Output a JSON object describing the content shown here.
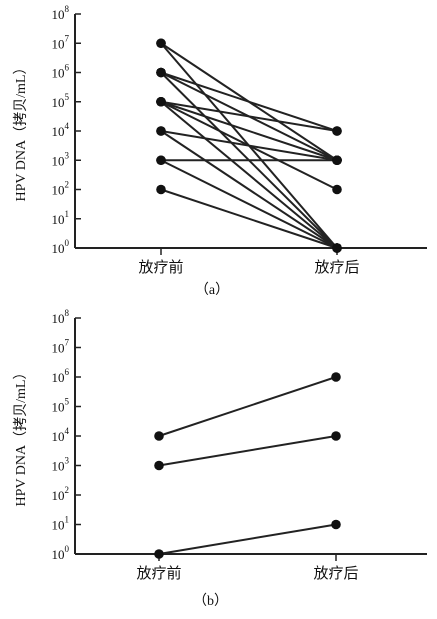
{
  "chart_data": [
    {
      "type": "line",
      "panel_label": "（a）",
      "ylabel": "HPV DNA（拷贝/mL）",
      "categories": [
        "放疗前",
        "放疗后"
      ],
      "y_scale": "log10",
      "ylim": [
        1,
        100000000
      ],
      "y_ticks": [
        {
          "base": "10",
          "exp": "0"
        },
        {
          "base": "10",
          "exp": "1"
        },
        {
          "base": "10",
          "exp": "2"
        },
        {
          "base": "10",
          "exp": "3"
        },
        {
          "base": "10",
          "exp": "4"
        },
        {
          "base": "10",
          "exp": "5"
        },
        {
          "base": "10",
          "exp": "6"
        },
        {
          "base": "10",
          "exp": "7"
        },
        {
          "base": "10",
          "exp": "8"
        }
      ],
      "grid": false,
      "series": [
        {
          "values": [
            10000000,
            1
          ]
        },
        {
          "values": [
            10000000,
            1000
          ]
        },
        {
          "values": [
            1000000,
            10000
          ]
        },
        {
          "values": [
            1000000,
            1000
          ]
        },
        {
          "values": [
            1000000,
            1
          ]
        },
        {
          "values": [
            100000,
            10000
          ]
        },
        {
          "values": [
            100000,
            1000
          ]
        },
        {
          "values": [
            100000,
            100
          ]
        },
        {
          "values": [
            100000,
            1
          ]
        },
        {
          "values": [
            10000,
            1000
          ]
        },
        {
          "values": [
            10000,
            1
          ]
        },
        {
          "values": [
            1000,
            1000
          ]
        },
        {
          "values": [
            1000,
            1
          ]
        },
        {
          "values": [
            100,
            1
          ]
        }
      ]
    },
    {
      "type": "line",
      "panel_label": "（b）",
      "ylabel": "HPV DNA（拷贝/mL）",
      "categories": [
        "放疗前",
        "放疗后"
      ],
      "y_scale": "log10",
      "ylim": [
        1,
        100000000
      ],
      "y_ticks": [
        {
          "base": "10",
          "exp": "0"
        },
        {
          "base": "10",
          "exp": "1"
        },
        {
          "base": "10",
          "exp": "2"
        },
        {
          "base": "10",
          "exp": "3"
        },
        {
          "base": "10",
          "exp": "4"
        },
        {
          "base": "10",
          "exp": "5"
        },
        {
          "base": "10",
          "exp": "6"
        },
        {
          "base": "10",
          "exp": "7"
        },
        {
          "base": "10",
          "exp": "8"
        }
      ],
      "grid": false,
      "series": [
        {
          "values": [
            10000,
            1000000
          ]
        },
        {
          "values": [
            1000,
            10000
          ]
        },
        {
          "values": [
            1,
            10
          ]
        }
      ]
    }
  ]
}
